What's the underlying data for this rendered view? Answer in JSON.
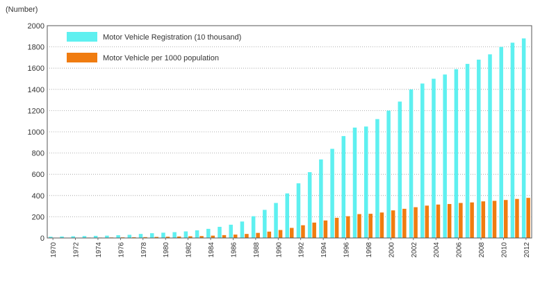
{
  "chart_data": {
    "type": "bar",
    "unit_label": "(Number)",
    "title": "",
    "xlabel": "",
    "ylabel": "",
    "ylim": [
      0,
      2000
    ],
    "yticks": [
      0,
      200,
      400,
      600,
      800,
      1000,
      1200,
      1400,
      1600,
      1800,
      2000
    ],
    "grid": true,
    "legend_position": "top-left",
    "categories": [
      "1970",
      "1971",
      "1972",
      "1973",
      "1974",
      "1975",
      "1976",
      "1977",
      "1978",
      "1979",
      "1980",
      "1981",
      "1982",
      "1983",
      "1984",
      "1985",
      "1986",
      "1987",
      "1988",
      "1989",
      "1990",
      "1991",
      "1992",
      "1993",
      "1994",
      "1995",
      "1996",
      "1997",
      "1998",
      "1999",
      "2000",
      "2001",
      "2002",
      "2003",
      "2004",
      "2005",
      "2006",
      "2007",
      "2008",
      "2009",
      "2010",
      "2011",
      "2012"
    ],
    "x_tick_labels": [
      "1970",
      "1972",
      "1974",
      "1976",
      "1978",
      "1980",
      "1982",
      "1984",
      "1986",
      "1988",
      "1990",
      "1992",
      "1994",
      "1996",
      "1998",
      "2000",
      "2002",
      "2004",
      "2006",
      "2008",
      "2010",
      "2012"
    ],
    "series": [
      {
        "name": "Motor Vehicle Registration (10 thousand)",
        "color": "#5ef0f0",
        "values": [
          12,
          14,
          16,
          18,
          20,
          22,
          26,
          30,
          38,
          45,
          50,
          55,
          62,
          72,
          86,
          105,
          125,
          155,
          205,
          265,
          330,
          420,
          515,
          620,
          740,
          840,
          960,
          1040,
          1050,
          1120,
          1200,
          1285,
          1400,
          1455,
          1500,
          1540,
          1590,
          1640,
          1680,
          1730,
          1800,
          1840,
          1880
        ]
      },
      {
        "name": "Motor Vehicle per 1000 population",
        "color": "#f07c10",
        "values": [
          2,
          3,
          3,
          4,
          4,
          5,
          6,
          7,
          8,
          10,
          12,
          14,
          16,
          18,
          22,
          27,
          32,
          38,
          48,
          60,
          75,
          95,
          120,
          145,
          165,
          190,
          205,
          225,
          228,
          240,
          260,
          275,
          290,
          305,
          315,
          320,
          330,
          335,
          345,
          350,
          358,
          368,
          378
        ]
      }
    ]
  }
}
